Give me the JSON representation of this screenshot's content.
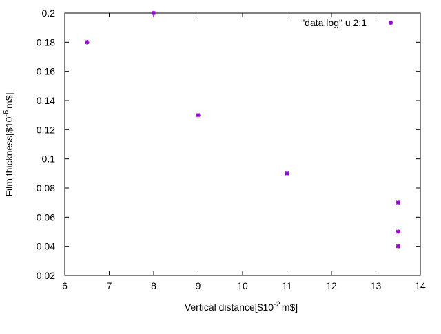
{
  "chart_data": {
    "type": "scatter",
    "xlabel": "Vertical distance[$10",
    "xlabel_sup": "-2",
    "xlabel_tail": "m$]",
    "ylabel": "Film thickness[$10",
    "ylabel_sup": "-6",
    "ylabel_tail": "m$]",
    "xlim": [
      6,
      14
    ],
    "ylim": [
      0.02,
      0.2
    ],
    "xticks": [
      6,
      7,
      8,
      9,
      10,
      11,
      12,
      13,
      14
    ],
    "xtick_labels": [
      "6",
      "7",
      "8",
      "9",
      "10",
      "11",
      "12",
      "13",
      "14"
    ],
    "yticks": [
      0.02,
      0.04,
      0.06,
      0.08,
      0.1,
      0.12,
      0.14,
      0.16,
      0.18,
      0.2
    ],
    "ytick_labels": [
      "0.02",
      "0.04",
      "0.06",
      "0.08",
      "0.1",
      "0.12",
      "0.14",
      "0.16",
      "0.18",
      "0.2"
    ],
    "grid": false,
    "legend_position": "top-right",
    "series": [
      {
        "name": "\"data.log\" u 2:1",
        "color": "#9400d3",
        "marker": "star",
        "x": [
          6.5,
          8,
          9,
          11,
          13.5,
          13.5,
          13.5
        ],
        "y": [
          0.18,
          0.2,
          0.13,
          0.09,
          0.07,
          0.05,
          0.04
        ]
      }
    ]
  }
}
